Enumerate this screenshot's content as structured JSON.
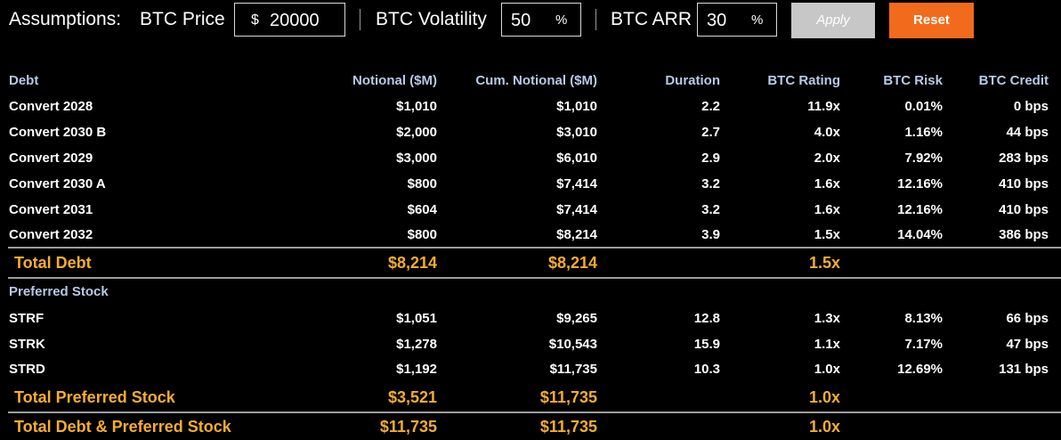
{
  "assumptions": {
    "title": "Assumptions:",
    "btc_price": {
      "label": "BTC Price",
      "prefix": "$",
      "value": "20000"
    },
    "btc_volatility": {
      "label": "BTC Volatility",
      "value": "50",
      "suffix": "%"
    },
    "btc_arr": {
      "label": "BTC ARR",
      "value": "30",
      "suffix": "%"
    },
    "apply_label": "Apply",
    "reset_label": "Reset"
  },
  "table": {
    "columns": [
      "Debt",
      "Notional ($M)",
      "Cum. Notional ($M)",
      "Duration",
      "BTC Rating",
      "BTC Risk",
      "BTC Credit"
    ],
    "debt_rows": [
      [
        "Convert 2028",
        "$1,010",
        "$1,010",
        "2.2",
        "11.9x",
        "0.01%",
        "0 bps"
      ],
      [
        "Convert 2030 B",
        "$2,000",
        "$3,010",
        "2.7",
        "4.0x",
        "1.16%",
        "44 bps"
      ],
      [
        "Convert 2029",
        "$3,000",
        "$6,010",
        "2.9",
        "2.0x",
        "7.92%",
        "283 bps"
      ],
      [
        "Convert 2030 A",
        "$800",
        "$7,414",
        "3.2",
        "1.6x",
        "12.16%",
        "410 bps"
      ],
      [
        "Convert 2031",
        "$604",
        "$7,414",
        "3.2",
        "1.6x",
        "12.16%",
        "410 bps"
      ],
      [
        "Convert 2032",
        "$800",
        "$8,214",
        "3.9",
        "1.5x",
        "14.04%",
        "386 bps"
      ]
    ],
    "total_debt": [
      "Total Debt",
      "$8,214",
      "$8,214",
      "",
      "1.5x",
      "",
      ""
    ],
    "preferred_section_label": "Preferred Stock",
    "preferred_rows": [
      [
        "STRF",
        "$1,051",
        "$9,265",
        "12.8",
        "1.3x",
        "8.13%",
        "66 bps"
      ],
      [
        "STRK",
        "$1,278",
        "$10,543",
        "15.9",
        "1.1x",
        "7.17%",
        "47 bps"
      ],
      [
        "STRD",
        "$1,192",
        "$11,735",
        "10.3",
        "1.0x",
        "12.69%",
        "131 bps"
      ]
    ],
    "total_preferred": [
      "Total Preferred Stock",
      "$3,521",
      "$11,735",
      "",
      "1.0x",
      "",
      ""
    ],
    "total_all": [
      "Total Debt & Preferred Stock",
      "$11,735",
      "$11,735",
      "",
      "1.0x",
      "",
      ""
    ]
  },
  "colors": {
    "background": "#000000",
    "header_text": "#b6c9e6",
    "total_text": "#f6ad2c",
    "reset_button": "#f26b1d",
    "apply_button": "#c7c7c7",
    "rule": "#9d9d9d"
  }
}
